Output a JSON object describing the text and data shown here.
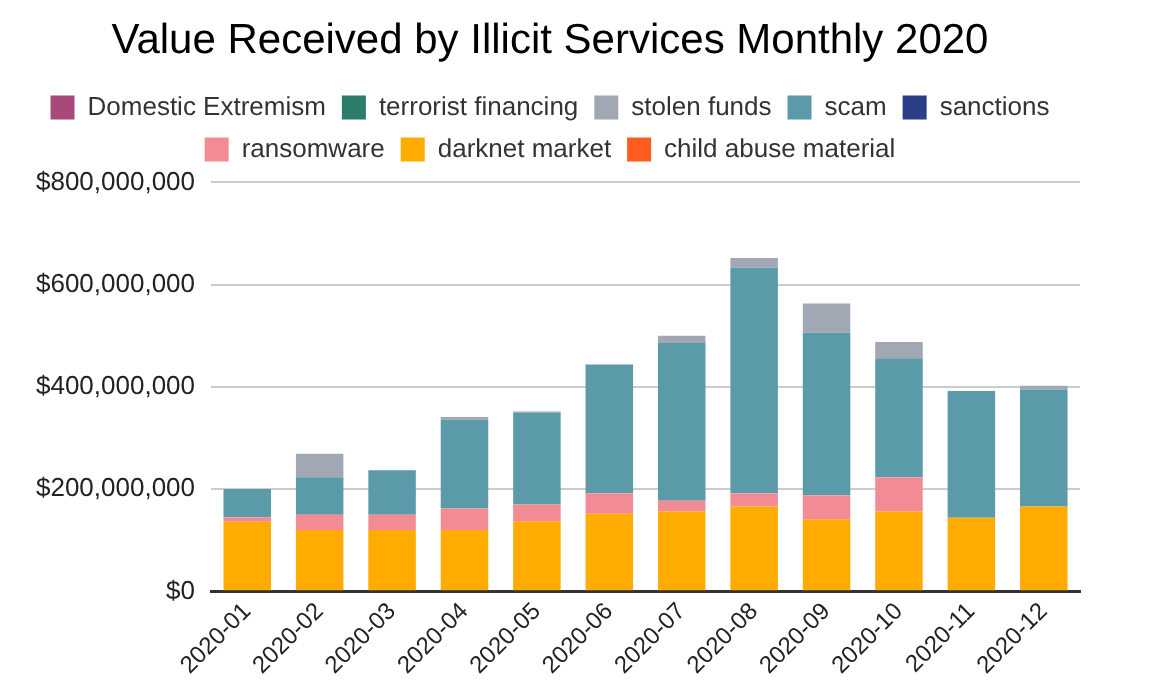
{
  "chart_data": {
    "type": "bar",
    "title": "Value Received by Illicit Services Monthly 2020",
    "categories": [
      "2020-01",
      "2020-02",
      "2020-03",
      "2020-04",
      "2020-05",
      "2020-06",
      "2020-07",
      "2020-08",
      "2020-09",
      "2020-10",
      "2020-11",
      "2020-12"
    ],
    "stacked": true,
    "grid": "y",
    "legend": "top",
    "ylim": [
      0,
      800000000
    ],
    "yticks": [
      {
        "value": 0,
        "label": "$0"
      },
      {
        "value": 200000000,
        "label": "$200,000,000"
      },
      {
        "value": 400000000,
        "label": "$400,000,000"
      },
      {
        "value": 600000000,
        "label": "$600,000,000"
      },
      {
        "value": 800000000,
        "label": "$800,000,000"
      }
    ],
    "series": [
      {
        "name": "child abuse material",
        "color": "#ff5a1f",
        "values": [
          0,
          0,
          0,
          0,
          0,
          0,
          0,
          0,
          0,
          0,
          0,
          0
        ]
      },
      {
        "name": "darknet market",
        "color": "#ffab00",
        "values": [
          136000000,
          120000000,
          120000000,
          120000000,
          137000000,
          152000000,
          156000000,
          166000000,
          141000000,
          156000000,
          144000000,
          166000000
        ]
      },
      {
        "name": "ransomware",
        "color": "#f28b94",
        "values": [
          9000000,
          30000000,
          30000000,
          42000000,
          33000000,
          40000000,
          21000000,
          26000000,
          47000000,
          67000000,
          0,
          0
        ]
      },
      {
        "name": "sanctions",
        "color": "#2b3f87",
        "values": [
          0,
          0,
          0,
          0,
          0,
          0,
          0,
          0,
          0,
          0,
          0,
          0
        ]
      },
      {
        "name": "scam",
        "color": "#5b9aa8",
        "values": [
          55000000,
          73000000,
          87000000,
          174000000,
          180000000,
          252000000,
          309000000,
          441000000,
          318000000,
          233000000,
          248000000,
          229000000
        ]
      },
      {
        "name": "stolen funds",
        "color": "#a2a8b3",
        "values": [
          0,
          46000000,
          0,
          5000000,
          2000000,
          0,
          14000000,
          19000000,
          57000000,
          32000000,
          0,
          7000000
        ]
      },
      {
        "name": "terrorist financing",
        "color": "#2e7d6b",
        "values": [
          0,
          0,
          0,
          0,
          0,
          0,
          0,
          0,
          0,
          0,
          0,
          0
        ]
      },
      {
        "name": "Domestic Extremism",
        "color": "#a8497a",
        "values": [
          0,
          0,
          0,
          0,
          0,
          0,
          0,
          0,
          0,
          0,
          0,
          0
        ]
      }
    ]
  }
}
